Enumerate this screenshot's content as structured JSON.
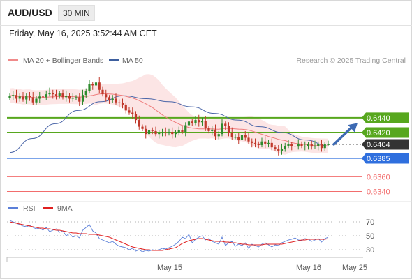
{
  "header": {
    "pair": "AUD/USD",
    "timeframe": "30 MIN"
  },
  "datetime": "Friday, May 16, 2025 3:52:44 AM CET",
  "legend": {
    "items": [
      {
        "name": "MA 20 + Bollinger Bands",
        "color": "#f08a8a"
      },
      {
        "name": "MA 50",
        "color": "#3d5f9e"
      }
    ]
  },
  "credit": "Research © 2025 Trading Central",
  "colors": {
    "up": "#2e8b2e",
    "down": "#c0392b",
    "support": "#57a71e",
    "pivot": "#2f6fde",
    "resistance_red": "#f26d6d",
    "current": "#333333",
    "band_fill": "#fbdcdc",
    "ma50": "#4a65a8",
    "ma20": "#ef7d7d",
    "arrow": "#3d6ab3"
  },
  "chart_data": [
    {
      "type": "candlestick",
      "ylim": [
        0.6332,
        0.651
      ],
      "x_labels": [
        "May 15",
        "May 16",
        "May 25"
      ],
      "levels": [
        {
          "value": 0.644,
          "label": "0.6440",
          "style": "green"
        },
        {
          "value": 0.642,
          "label": "0.6420",
          "style": "green"
        },
        {
          "value": 0.6404,
          "label": "0.6404",
          "style": "current"
        },
        {
          "value": 0.6385,
          "label": "0.6385",
          "style": "blue"
        },
        {
          "value": 0.636,
          "label": "0.6360",
          "style": "red"
        },
        {
          "value": 0.634,
          "label": "0.6340",
          "style": "red"
        }
      ],
      "closes": [
        0.647,
        0.6471,
        0.6466,
        0.6469,
        0.6465,
        0.647,
        0.6468,
        0.6461,
        0.6466,
        0.6469,
        0.6468,
        0.6472,
        0.6474,
        0.6472,
        0.647,
        0.6473,
        0.6468,
        0.647,
        0.6466,
        0.6467,
        0.6468,
        0.6462,
        0.6471,
        0.6476,
        0.6486,
        0.6484,
        0.6488,
        0.6478,
        0.6472,
        0.6468,
        0.6464,
        0.6466,
        0.6461,
        0.646,
        0.6458,
        0.645,
        0.6447,
        0.6445,
        0.6437,
        0.6428,
        0.6425,
        0.6418,
        0.6423,
        0.6422,
        0.6418,
        0.642,
        0.642,
        0.6419,
        0.6421,
        0.6418,
        0.642,
        0.6423,
        0.6421,
        0.643,
        0.6435,
        0.6433,
        0.6437,
        0.6434,
        0.6436,
        0.6426,
        0.6422,
        0.6424,
        0.6415,
        0.6418,
        0.6432,
        0.6429,
        0.642,
        0.6414,
        0.6414,
        0.641,
        0.6417,
        0.6413,
        0.6408,
        0.6406,
        0.6405,
        0.6403,
        0.6408,
        0.6405,
        0.6406,
        0.64,
        0.6398,
        0.6395,
        0.6398,
        0.6402,
        0.6404,
        0.6402,
        0.6401,
        0.6404,
        0.6402,
        0.6402,
        0.6404,
        0.6401,
        0.6402,
        0.6404,
        0.6399,
        0.6404,
        0.6404
      ],
      "ma50_anchor": [
        0.6393,
        0.6412,
        0.6432,
        0.645,
        0.6462,
        0.647,
        0.6466,
        0.6462,
        0.6455,
        0.6446,
        0.6437,
        0.6428,
        0.642,
        0.641,
        0.6402
      ],
      "forecast": {
        "from": 0.6404,
        "to": 0.642
      }
    },
    {
      "type": "line",
      "legend": [
        {
          "name": "RSI",
          "color": "#5b7fd8"
        },
        {
          "name": "9MA",
          "color": "#e02020"
        }
      ],
      "ylim": [
        22,
        82
      ],
      "y_ticks": [
        70,
        50,
        30
      ],
      "rsi": [
        72,
        70,
        68,
        66,
        64,
        63,
        65,
        62,
        60,
        61,
        58,
        62,
        56,
        58,
        60,
        55,
        57,
        50,
        53,
        48,
        50,
        47,
        58,
        62,
        66,
        57,
        54,
        46,
        44,
        42,
        40,
        42,
        38,
        35,
        34,
        33,
        30,
        32,
        28,
        30,
        27,
        29,
        28,
        30,
        29,
        30,
        32,
        31,
        33,
        35,
        38,
        42,
        48,
        46,
        52,
        40,
        45,
        48,
        50,
        44,
        46,
        42,
        40,
        38,
        48,
        36,
        40,
        42,
        35,
        38,
        36,
        40,
        32,
        38,
        36,
        34,
        38,
        40,
        37,
        34,
        37,
        36,
        40,
        42,
        44,
        45,
        47,
        44,
        43,
        46,
        45,
        42,
        44,
        46,
        41,
        46,
        48
      ],
      "ma9": [
        70,
        69,
        68,
        67,
        66,
        65,
        64,
        63,
        62,
        61,
        61,
        60,
        60,
        59,
        58,
        58,
        57,
        56,
        55,
        54,
        54,
        53,
        53,
        53,
        52,
        52,
        52,
        51,
        50,
        49,
        48,
        46,
        44,
        42,
        40,
        38,
        36,
        34,
        33,
        32,
        31,
        30,
        30,
        29,
        29,
        29,
        29,
        30,
        31,
        32,
        33,
        36,
        39,
        41,
        43,
        44,
        45,
        46,
        46,
        45,
        44,
        43,
        42,
        42,
        42,
        41,
        41,
        40,
        40,
        39,
        38,
        38,
        37,
        37,
        37,
        37,
        37,
        38,
        38,
        38,
        38,
        38,
        38,
        39,
        40,
        41,
        42,
        43,
        44,
        44,
        45,
        45,
        45,
        45,
        45,
        45,
        46
      ]
    }
  ]
}
